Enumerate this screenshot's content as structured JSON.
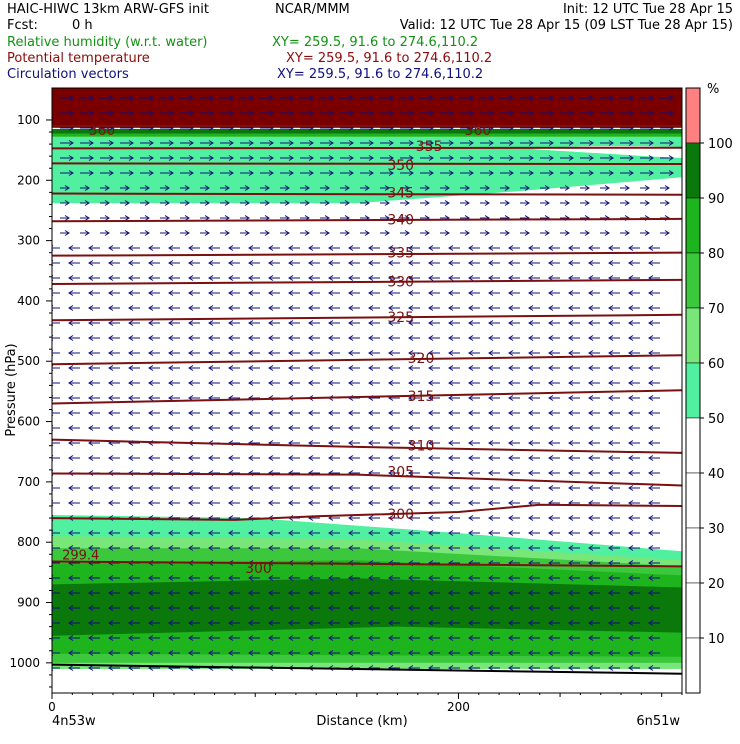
{
  "header": {
    "title_left": "HAIC-HIWC 13km ARW-GFS init",
    "org": "NCAR/MMM",
    "init": "Init: 12 UTC Tue 28 Apr 15",
    "fcst_label": "Fcst:",
    "fcst_value": "0 h",
    "valid": "Valid: 12 UTC Tue 28 Apr 15 (09 LST Tue 28 Apr 15)",
    "field1": {
      "name": "Relative humidity (w.r.t. water)",
      "xy": "XY= 259.5, 91.6 to 274.6,110.2",
      "color": "#139313"
    },
    "field2": {
      "name": "Potential temperature",
      "xy": "XY= 259.5, 91.6 to 274.6,110.2",
      "color": "#8c0c0c"
    },
    "field3": {
      "name": "Circulation vectors",
      "xy": "XY= 259.5, 91.6 to 274.6,110.2",
      "color": "#10107a"
    }
  },
  "chart_data": {
    "type": "heatmap",
    "xlabel": "Distance (km)",
    "ylabel": "Pressure (hPa)",
    "x_ticks": [
      {
        "value": 0,
        "label": "0"
      },
      {
        "value": 200,
        "label": "200"
      }
    ],
    "x_end_labels": {
      "left": "4n53w",
      "right": "6n51w"
    },
    "xlim": [
      0,
      310
    ],
    "y_ticks": [
      100,
      200,
      300,
      400,
      500,
      600,
      700,
      800,
      900,
      1000
    ],
    "ylim": [
      47,
      1050
    ],
    "colorbar": {
      "unit": "%",
      "levels": [
        {
          "lo": 0,
          "hi": 50,
          "color": "#ffffff"
        },
        {
          "lo": 50,
          "hi": 60,
          "color": "#50f0a0"
        },
        {
          "lo": 60,
          "hi": 70,
          "color": "#78e678"
        },
        {
          "lo": 70,
          "hi": 80,
          "color": "#3cc83c"
        },
        {
          "lo": 80,
          "hi": 90,
          "color": "#1eb41e"
        },
        {
          "lo": 90,
          "hi": 100,
          "color": "#0a780a"
        },
        {
          "lo": 100,
          "hi": 110,
          "color": "#ff8080"
        }
      ],
      "tick_labels": [
        "10",
        "20",
        "30",
        "40",
        "50",
        "60",
        "70",
        "80",
        "90",
        "100"
      ]
    },
    "rh_layers": [
      {
        "level": "90-100",
        "top": [
          [
            0,
            115
          ],
          [
            310,
            115
          ]
        ],
        "bottom": [
          [
            0,
            123
          ],
          [
            310,
            123
          ]
        ]
      },
      {
        "level": "80-90",
        "top": [
          [
            0,
            123
          ],
          [
            310,
            123
          ]
        ],
        "bottom": [
          [
            0,
            128
          ],
          [
            310,
            128
          ]
        ]
      },
      {
        "level": "50-60",
        "top": [
          [
            0,
            128
          ],
          [
            310,
            128
          ]
        ],
        "bottom": [
          [
            0,
            238
          ],
          [
            150,
            238
          ],
          [
            230,
            218
          ],
          [
            310,
            195
          ]
        ]
      },
      {
        "level": "50-60",
        "top": [
          [
            0,
            755
          ],
          [
            100,
            760
          ],
          [
            200,
            785
          ],
          [
            310,
            815
          ]
        ],
        "bottom": [
          [
            0,
            1010
          ],
          [
            310,
            1010
          ]
        ]
      },
      {
        "level": "60-70",
        "top": [
          [
            0,
            790
          ],
          [
            150,
            795
          ],
          [
            310,
            830
          ]
        ],
        "bottom": [
          [
            0,
            1010
          ],
          [
            310,
            1010
          ]
        ]
      },
      {
        "level": "70-80",
        "top": [
          [
            0,
            810
          ],
          [
            150,
            810
          ],
          [
            310,
            840
          ]
        ],
        "bottom": [
          [
            0,
            1000
          ],
          [
            310,
            1000
          ]
        ]
      },
      {
        "level": "80-90",
        "top": [
          [
            0,
            835
          ],
          [
            150,
            830
          ],
          [
            310,
            855
          ]
        ],
        "bottom": [
          [
            0,
            985
          ],
          [
            310,
            990
          ]
        ]
      },
      {
        "level": "90-100",
        "top": [
          [
            0,
            870
          ],
          [
            150,
            860
          ],
          [
            310,
            875
          ]
        ],
        "bottom": [
          [
            0,
            955
          ],
          [
            170,
            940
          ],
          [
            310,
            950
          ]
        ]
      }
    ],
    "isentropes": [
      {
        "value": "360",
        "label_x": 18,
        "label_y": 117,
        "points": [
          [
            0,
            110
          ],
          [
            310,
            110
          ]
        ]
      },
      {
        "value": "360",
        "label_x": 203,
        "label_y": 117,
        "points": []
      },
      {
        "value": "355",
        "label_x": 179,
        "label_y": 143,
        "points": [
          [
            0,
            147
          ],
          [
            310,
            146
          ]
        ]
      },
      {
        "value": "350",
        "label_x": 165,
        "label_y": 175,
        "points": [
          [
            0,
            172
          ],
          [
            310,
            173
          ]
        ]
      },
      {
        "value": "345",
        "label_x": 165,
        "label_y": 220,
        "points": [
          [
            0,
            222
          ],
          [
            310,
            224
          ]
        ]
      },
      {
        "value": "340",
        "label_x": 165,
        "label_y": 265,
        "points": [
          [
            0,
            268
          ],
          [
            310,
            264
          ]
        ]
      },
      {
        "value": "335",
        "label_x": 165,
        "label_y": 320,
        "points": [
          [
            0,
            325
          ],
          [
            310,
            320
          ]
        ]
      },
      {
        "value": "330",
        "label_x": 165,
        "label_y": 368,
        "points": [
          [
            0,
            372
          ],
          [
            310,
            365
          ]
        ]
      },
      {
        "value": "325",
        "label_x": 165,
        "label_y": 427,
        "points": [
          [
            0,
            432
          ],
          [
            310,
            423
          ]
        ]
      },
      {
        "value": "320",
        "label_x": 175,
        "label_y": 495,
        "points": [
          [
            0,
            505
          ],
          [
            310,
            490
          ]
        ]
      },
      {
        "value": "315",
        "label_x": 175,
        "label_y": 558,
        "points": [
          [
            0,
            570
          ],
          [
            310,
            548
          ]
        ]
      },
      {
        "value": "310",
        "label_x": 175,
        "label_y": 640,
        "points": [
          [
            0,
            630
          ],
          [
            150,
            642
          ],
          [
            310,
            652
          ]
        ]
      },
      {
        "value": "305",
        "label_x": 165,
        "label_y": 683,
        "points": [
          [
            0,
            686
          ],
          [
            150,
            688
          ],
          [
            310,
            706
          ]
        ]
      },
      {
        "value": "300",
        "label_x": 165,
        "label_y": 753,
        "points": [
          [
            0,
            760
          ],
          [
            90,
            763
          ],
          [
            130,
            757
          ],
          [
            200,
            750
          ],
          [
            240,
            738
          ],
          [
            310,
            740
          ]
        ]
      },
      {
        "value": "300",
        "label_x": 95,
        "label_y": 843,
        "points": [
          [
            0,
            832
          ],
          [
            310,
            840
          ]
        ]
      }
    ],
    "annotations": [
      {
        "text": "299.4",
        "x": 2,
        "y": 820
      }
    ]
  }
}
